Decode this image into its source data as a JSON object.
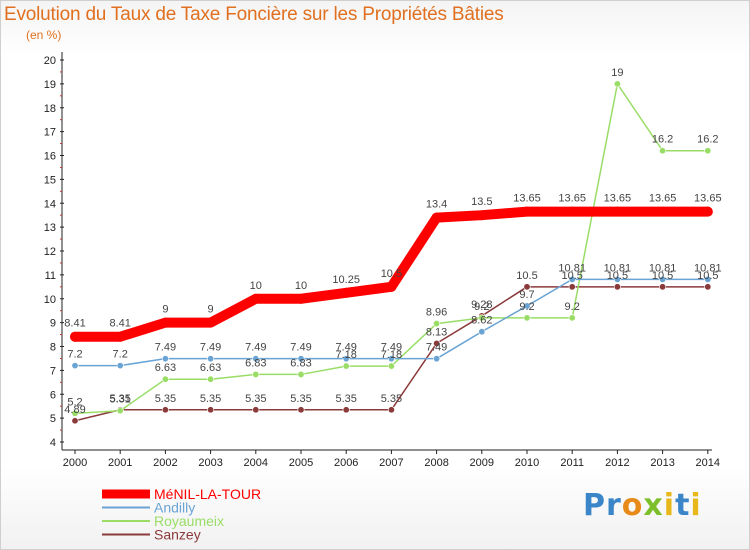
{
  "header": {
    "title": "Evolution du Taux de Taxe Foncière sur les Propriétés Bâties",
    "subtitle": "(en %)"
  },
  "logo": {
    "text": "Proxiti",
    "letters": [
      {
        "ch": "P",
        "color": "#3b86c8"
      },
      {
        "ch": "r",
        "color": "#3b86c8"
      },
      {
        "ch": "o",
        "color": "#e88a1a"
      },
      {
        "ch": "x",
        "color": "#7cbf2a"
      },
      {
        "ch": "i",
        "color": "#e8b81a"
      },
      {
        "ch": "t",
        "color": "#3b86c8"
      },
      {
        "ch": "i",
        "color": "#e8b81a"
      }
    ]
  },
  "chart_data": {
    "type": "line",
    "title": "Evolution du Taux de Taxe Foncière sur les Propriétés Bâties",
    "ylabel": "(en %)",
    "xlabel": "",
    "x": [
      "2000",
      "2001",
      "2002",
      "2003",
      "2004",
      "2005",
      "2006",
      "2007",
      "2008",
      "2009",
      "2010",
      "2011",
      "2012",
      "2013",
      "2014"
    ],
    "ylim": [
      4,
      20
    ],
    "yticks": [
      4,
      5,
      6,
      7,
      8,
      9,
      10,
      11,
      12,
      13,
      14,
      15,
      16,
      17,
      18,
      19,
      20
    ],
    "grid": false,
    "legend_position": "bottom-left",
    "series": [
      {
        "name": "MéNIL-LA-TOUR",
        "color": "#ff0000",
        "values": [
          8.41,
          8.41,
          9,
          9,
          10,
          10,
          10.25,
          10.5,
          13.4,
          13.5,
          13.65,
          13.65,
          13.65,
          13.65,
          13.65
        ],
        "labels": [
          "8.41",
          "8.41",
          "9",
          "9",
          "10",
          "10",
          "10.25",
          "10.5",
          "13.4",
          "13.5",
          "13.65",
          "13.65",
          "13.65",
          "13.65",
          "13.65"
        ]
      },
      {
        "name": "Andilly",
        "color": "#6aa4d4",
        "values": [
          7.2,
          7.2,
          7.49,
          7.49,
          7.49,
          7.49,
          7.49,
          7.49,
          7.49,
          8.62,
          9.7,
          10.81,
          10.81,
          10.81,
          10.81
        ],
        "labels": [
          "7.2",
          "7.2",
          "7.49",
          "7.49",
          "7.49",
          "7.49",
          "7.49",
          "7.49",
          "7.49",
          "8.62",
          "9.7",
          "10.81",
          "10.81",
          "10.81",
          "10.81"
        ]
      },
      {
        "name": "Royaumeix",
        "color": "#99dd66",
        "values": [
          5.2,
          5.31,
          6.63,
          6.63,
          6.83,
          6.83,
          7.18,
          7.18,
          8.96,
          9.2,
          9.2,
          9.2,
          19,
          16.2,
          16.2
        ],
        "labels": [
          "5.2",
          "5.31",
          "6.63",
          "6.63",
          "6.83",
          "6.83",
          "7.18",
          "7.18",
          "8.96",
          "9.2",
          "9.2",
          "9.2",
          "19",
          "16.2",
          "16.2"
        ]
      },
      {
        "name": "Sanzey",
        "color": "#8b3a3a",
        "values": [
          4.89,
          5.35,
          5.35,
          5.35,
          5.35,
          5.35,
          5.35,
          5.35,
          8.13,
          9.28,
          10.5,
          10.5,
          10.5,
          10.5,
          10.5
        ],
        "labels": [
          "4.89",
          "5.35",
          "5.35",
          "5.35",
          "5.35",
          "5.35",
          "5.35",
          "5.35",
          "8.13",
          "9.28",
          "10.5",
          "10.5",
          "10.5",
          "10.5",
          "10.5"
        ]
      }
    ]
  }
}
